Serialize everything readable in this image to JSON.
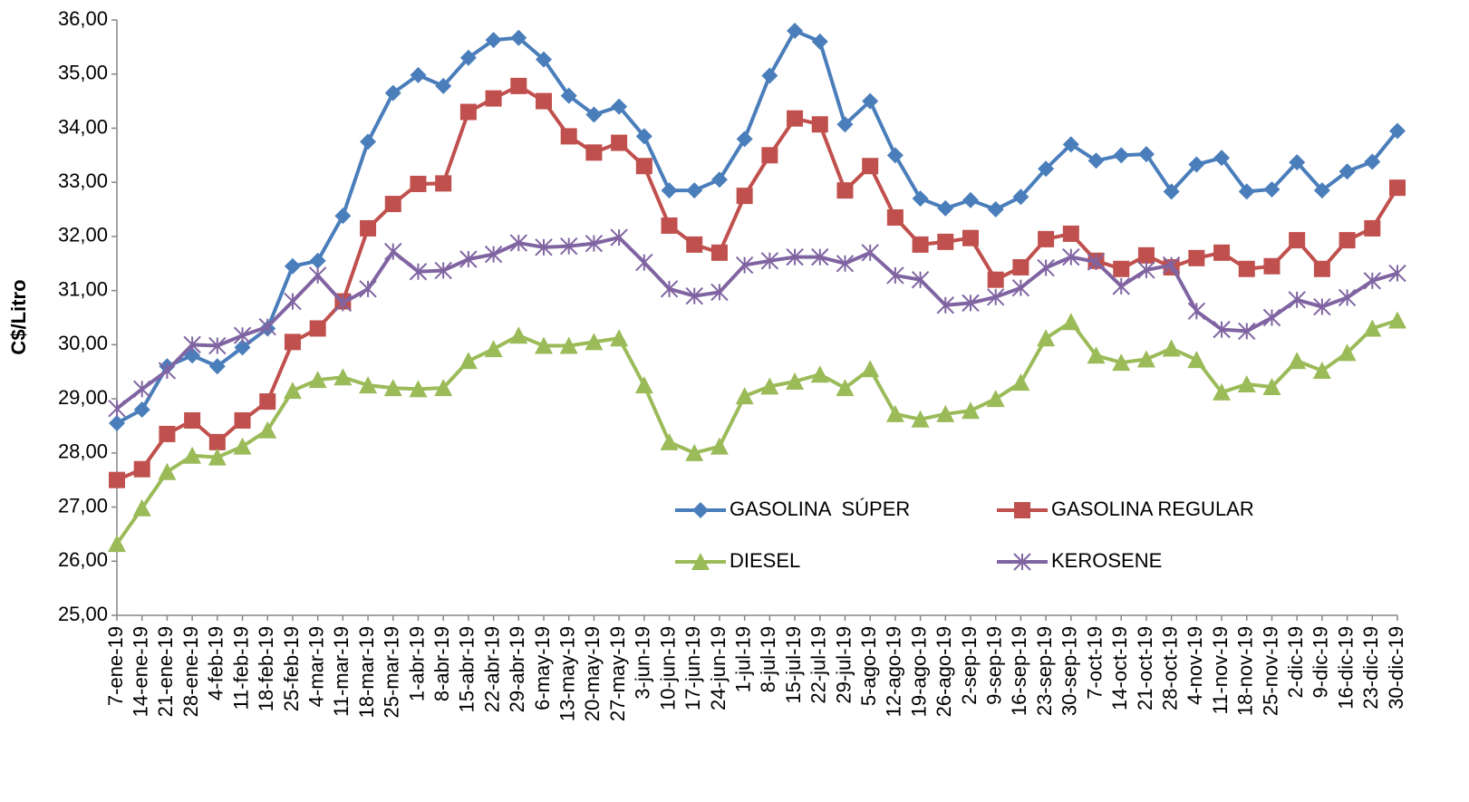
{
  "chart_data": {
    "type": "line",
    "y_label": "C$/Litro",
    "categories": [
      "7-ene-19",
      "14-ene-19",
      "21-ene-19",
      "28-ene-19",
      "4-feb-19",
      "11-feb-19",
      "18-feb-19",
      "25-feb-19",
      "4-mar-19",
      "11-mar-19",
      "18-mar-19",
      "25-mar-19",
      "1-abr-19",
      "8-abr-19",
      "15-abr-19",
      "22-abr-19",
      "29-abr-19",
      "6-may-19",
      "13-may-19",
      "20-may-19",
      "27-may-19",
      "3-jun-19",
      "10-jun-19",
      "17-jun-19",
      "24-jun-19",
      "1-jul-19",
      "8-jul-19",
      "15-jul-19",
      "22-jul-19",
      "29-jul-19",
      "5-ago-19",
      "12-ago-19",
      "19-ago-19",
      "26-ago-19",
      "2-sep-19",
      "9-sep-19",
      "16-sep-19",
      "23-sep-19",
      "30-sep-19",
      "7-oct-19",
      "14-oct-19",
      "21-oct-19",
      "28-oct-19",
      "4-nov-19",
      "11-nov-19",
      "18-nov-19",
      "25-nov-19",
      "2-dic-19",
      "9-dic-19",
      "16-dic-19",
      "23-dic-19",
      "30-dic-19"
    ],
    "series": [
      {
        "name": "GASOLINA  SÚPER",
        "color": "#4a7ebb",
        "marker": "diamond",
        "values": [
          28.55,
          28.8,
          29.6,
          29.8,
          29.6,
          29.95,
          30.3,
          31.45,
          31.55,
          32.38,
          33.75,
          34.65,
          34.98,
          34.78,
          35.3,
          35.63,
          35.67,
          35.27,
          34.6,
          34.25,
          34.4,
          33.85,
          32.85,
          32.85,
          33.05,
          33.8,
          34.97,
          35.8,
          35.6,
          34.07,
          34.5,
          33.5,
          32.7,
          32.52,
          32.67,
          32.5,
          32.73,
          33.25,
          33.7,
          33.4,
          33.5,
          33.52,
          32.83,
          33.33,
          33.45,
          32.83,
          32.87,
          33.37,
          32.85,
          33.2,
          33.38,
          33.95
        ]
      },
      {
        "name": "GASOLINA REGULAR",
        "color": "#c0504d",
        "marker": "square",
        "values": [
          27.5,
          27.7,
          28.35,
          28.6,
          28.2,
          28.6,
          28.95,
          30.05,
          30.3,
          30.8,
          32.15,
          32.6,
          32.97,
          32.98,
          34.3,
          34.55,
          34.78,
          34.5,
          33.85,
          33.55,
          33.73,
          33.3,
          32.2,
          31.85,
          31.7,
          32.75,
          33.5,
          34.18,
          34.07,
          32.85,
          33.3,
          32.35,
          31.85,
          31.9,
          31.97,
          31.2,
          31.43,
          31.95,
          32.05,
          31.55,
          31.4,
          31.65,
          31.43,
          31.6,
          31.7,
          31.4,
          31.45,
          31.93,
          31.4,
          31.93,
          32.15,
          32.9
        ]
      },
      {
        "name": "DIESEL",
        "color": "#9bbb59",
        "marker": "triangle",
        "values": [
          26.32,
          26.98,
          27.65,
          27.95,
          27.92,
          28.12,
          28.42,
          29.15,
          29.35,
          29.4,
          29.25,
          29.2,
          29.18,
          29.2,
          29.7,
          29.92,
          30.17,
          29.98,
          29.98,
          30.05,
          30.12,
          29.25,
          28.2,
          28.0,
          28.12,
          29.05,
          29.23,
          29.32,
          29.45,
          29.2,
          29.55,
          28.72,
          28.62,
          28.72,
          28.78,
          29.0,
          29.3,
          30.12,
          30.42,
          29.8,
          29.67,
          29.73,
          29.93,
          29.72,
          29.12,
          29.27,
          29.22,
          29.7,
          29.52,
          29.85,
          30.3,
          30.45
        ]
      },
      {
        "name": "KEROSENE",
        "color": "#8064a2",
        "marker": "x",
        "values": [
          28.82,
          29.18,
          29.52,
          30.0,
          29.98,
          30.17,
          30.33,
          30.8,
          31.28,
          30.77,
          31.03,
          31.72,
          31.35,
          31.37,
          31.58,
          31.67,
          31.88,
          31.8,
          31.82,
          31.87,
          31.98,
          31.52,
          31.03,
          30.9,
          30.97,
          31.47,
          31.55,
          31.62,
          31.62,
          31.5,
          31.7,
          31.28,
          31.2,
          30.73,
          30.77,
          30.88,
          31.05,
          31.42,
          31.62,
          31.53,
          31.08,
          31.38,
          31.47,
          30.62,
          30.28,
          30.25,
          30.5,
          30.83,
          30.7,
          30.87,
          31.18,
          31.32
        ]
      }
    ],
    "ylim": [
      25,
      36
    ],
    "yticks": [
      {
        "value": 25,
        "label": "25,00"
      },
      {
        "value": 26,
        "label": "26,00"
      },
      {
        "value": 27,
        "label": "27,00"
      },
      {
        "value": 28,
        "label": "28,00"
      },
      {
        "value": 29,
        "label": "29,00"
      },
      {
        "value": 30,
        "label": "30,00"
      },
      {
        "value": 31,
        "label": "31,00"
      },
      {
        "value": 32,
        "label": "32,00"
      },
      {
        "value": 33,
        "label": "33,00"
      },
      {
        "value": 34,
        "label": "34,00"
      },
      {
        "value": 35,
        "label": "35,00"
      },
      {
        "value": 36,
        "label": "36,00"
      }
    ],
    "grid": false,
    "legend": "center"
  }
}
